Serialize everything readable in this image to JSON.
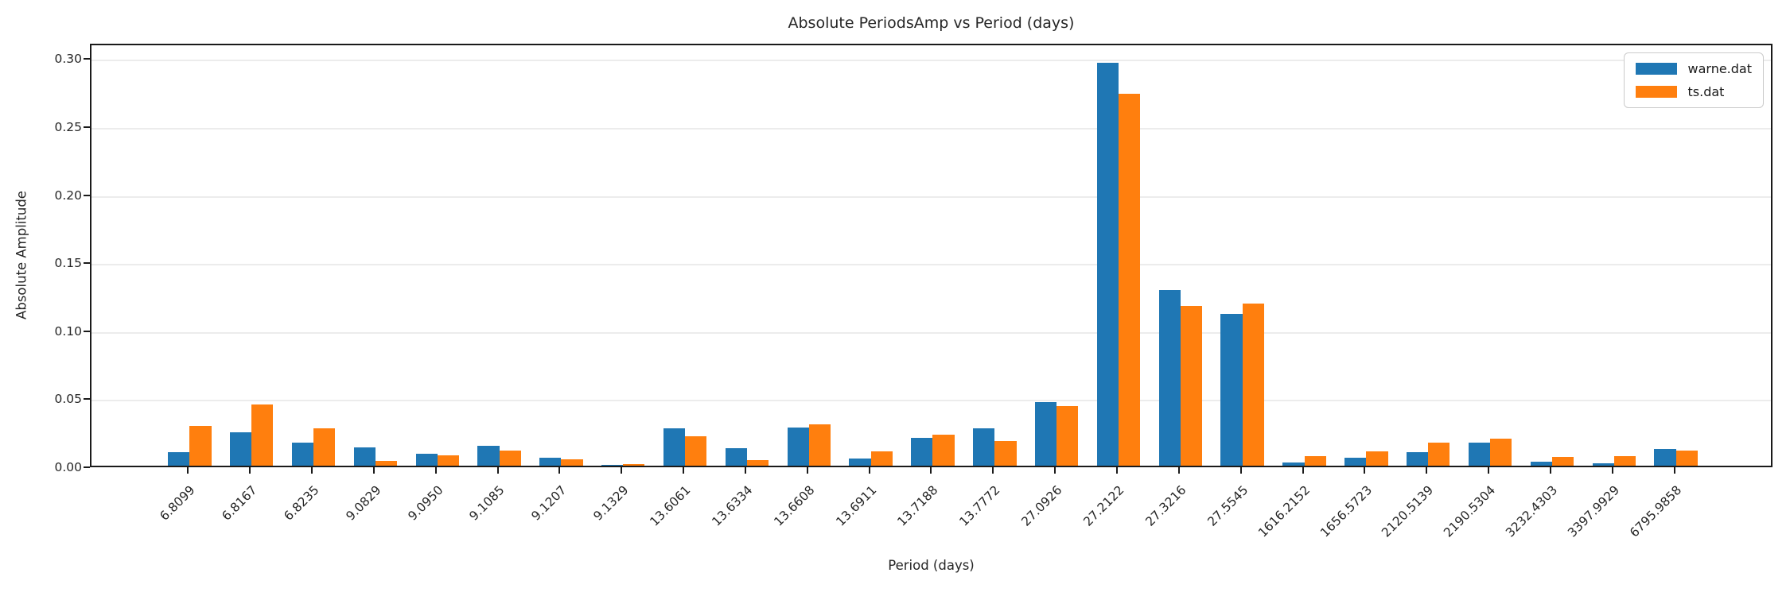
{
  "chart_data": {
    "type": "bar",
    "title": "Absolute PeriodsAmp vs Period (days)",
    "xlabel": "Period (days)",
    "ylabel": "Absolute Amplitude",
    "categories": [
      "6.8099",
      "6.8167",
      "6.8235",
      "9.0829",
      "9.0950",
      "9.1085",
      "9.1207",
      "9.1329",
      "13.6061",
      "13.6334",
      "13.6608",
      "13.6911",
      "13.7188",
      "13.7772",
      "27.0926",
      "27.2122",
      "27.3216",
      "27.5545",
      "1616.2152",
      "1656.5723",
      "2120.5139",
      "2190.5304",
      "3232.4303",
      "3397.9929",
      "6795.9858"
    ],
    "series": [
      {
        "name": "warne.dat",
        "color": "#1f77b4",
        "values": [
          0.0102,
          0.0246,
          0.0172,
          0.0136,
          0.009,
          0.0146,
          0.006,
          0.0004,
          0.0272,
          0.0131,
          0.0282,
          0.0055,
          0.0204,
          0.0272,
          0.0465,
          0.2964,
          0.129,
          0.1116,
          0.0025,
          0.006,
          0.0099,
          0.017,
          0.0029,
          0.002,
          0.012
        ]
      },
      {
        "name": "ts.dat",
        "color": "#ff7f0e",
        "values": [
          0.0294,
          0.0447,
          0.0275,
          0.0033,
          0.0078,
          0.011,
          0.0045,
          0.0009,
          0.0214,
          0.0041,
          0.0306,
          0.0103,
          0.0226,
          0.0183,
          0.0436,
          0.2731,
          0.1174,
          0.1192,
          0.0072,
          0.0103,
          0.0171,
          0.0198,
          0.0067,
          0.007,
          0.0111
        ]
      }
    ],
    "yticks": [
      0.0,
      0.05,
      0.1,
      0.15,
      0.2,
      0.25,
      0.3
    ],
    "ylim": [
      0,
      0.3113
    ],
    "grid": true,
    "legend_position": "upper right"
  }
}
